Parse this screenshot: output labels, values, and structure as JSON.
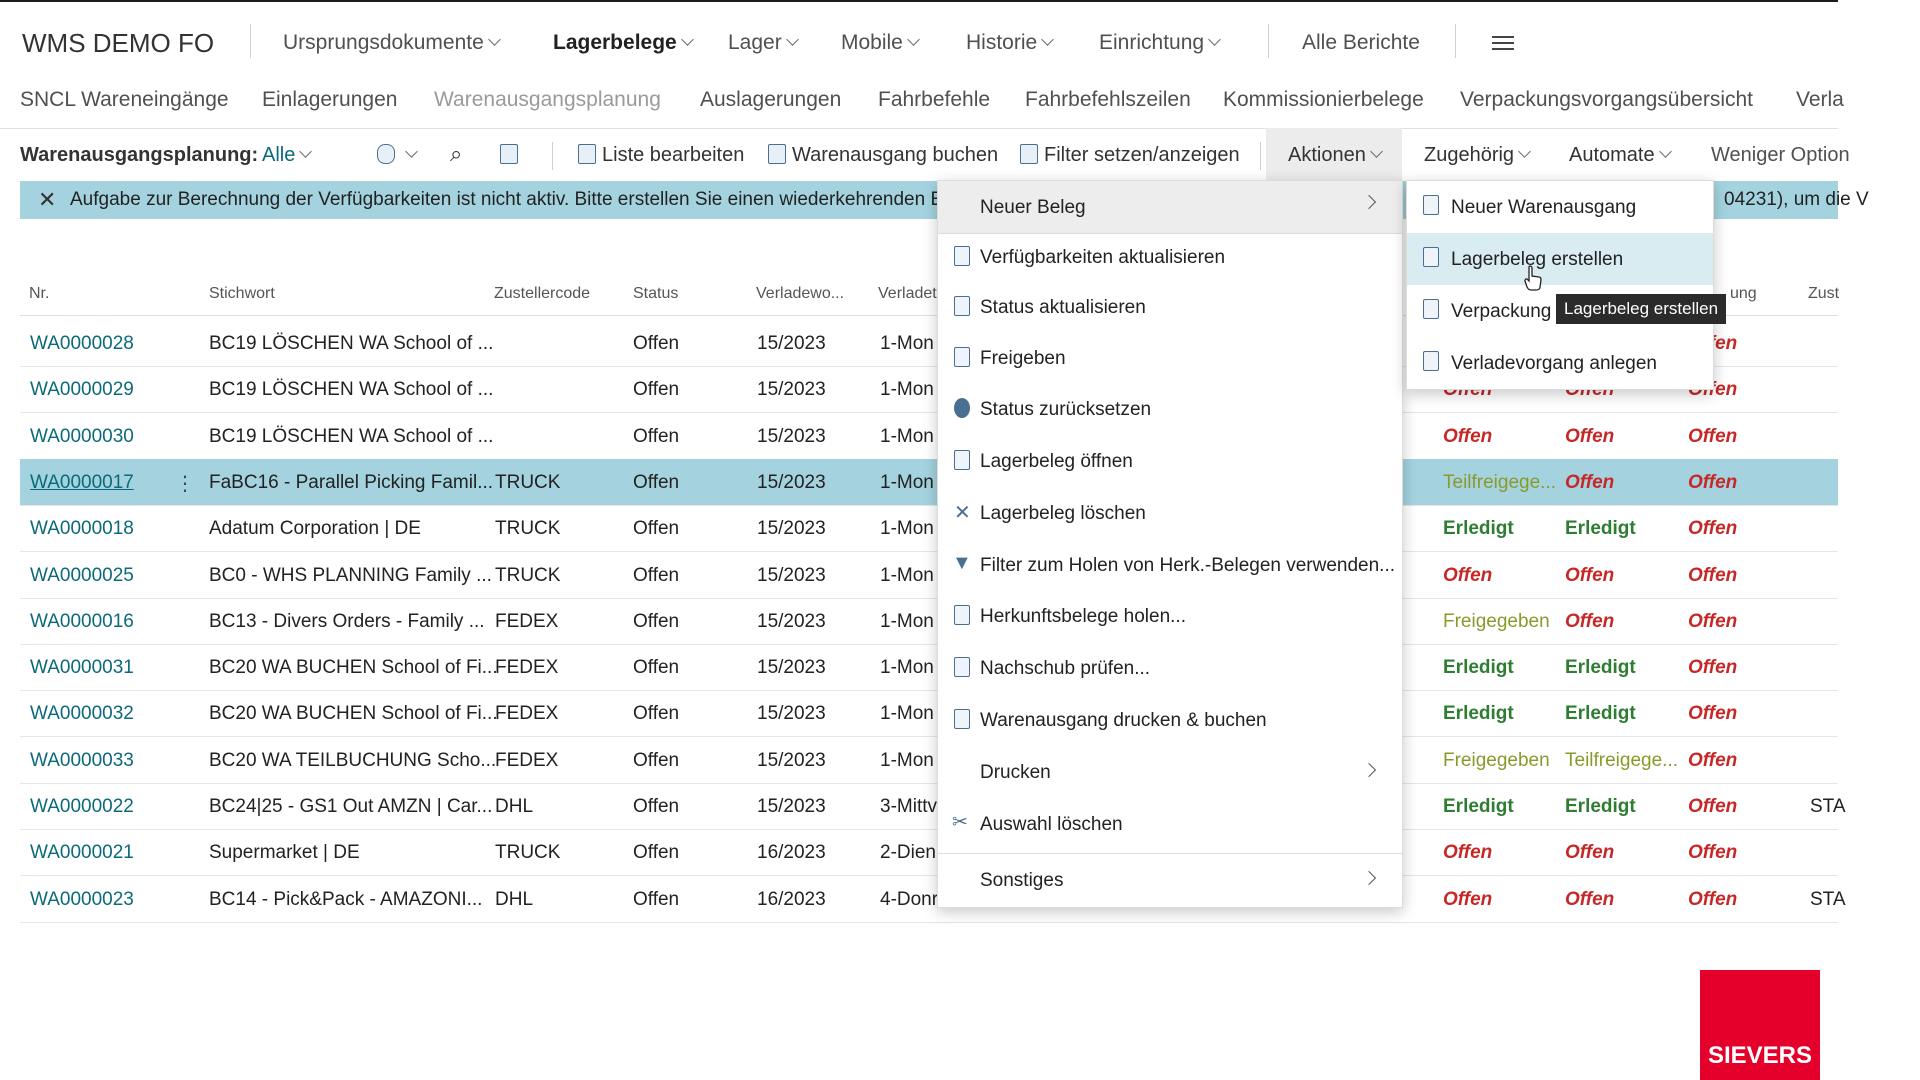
{
  "app": {
    "name": "WMS DEMO FO",
    "nav": [
      "Ursprungsdokumente",
      "Lagerbelege",
      "Lager",
      "Mobile",
      "Historie",
      "Einrichtung"
    ],
    "active_nav": "Lagerbelege",
    "reports": "Alle Berichte"
  },
  "subnav": [
    "SNCL Wareneingänge",
    "Einlagerungen",
    "Warenausgangsplanung",
    "Auslagerungen",
    "Fahrbefehle",
    "Fahrbefehlszeilen",
    "Kommissionierbelege",
    "Verpackungsvorgangsübersicht",
    "Verla"
  ],
  "actionbar": {
    "page_label": "Warenausgangsplanung:",
    "filter_value": "Alle",
    "liste_bearbeiten": "Liste bearbeiten",
    "warenausgang_buchen": "Warenausgang buchen",
    "filter_setzen": "Filter setzen/anzeigen",
    "aktionen": "Aktionen",
    "zugehoerig": "Zugehörig",
    "automate": "Automate",
    "weniger": "Weniger Option"
  },
  "banner": {
    "text": "Aufgabe zur Berechnung der Verfügbarkeiten ist nicht aktiv. Bitte erstellen Sie einen wiederkehrenden E",
    "text_right": "04231), um die V"
  },
  "table": {
    "headers": [
      "Nr.",
      "Stichwort",
      "Zustellercode",
      "Status",
      "Verladewo...",
      "Verladet",
      "ung",
      "Zust"
    ],
    "rows": [
      {
        "nr": "WA0000028",
        "stichwort": "BC19 LÖSCHEN WA School of ...",
        "zust": "",
        "status": "Offen",
        "woche": "15/2023",
        "tag": "1-Mon",
        "c1": "",
        "c2": "",
        "c3": "Offen",
        "c4": "",
        "selected": false
      },
      {
        "nr": "WA0000029",
        "stichwort": "BC19 LÖSCHEN WA School of ...",
        "zust": "",
        "status": "Offen",
        "woche": "15/2023",
        "tag": "1-Mon",
        "c1": "Offen",
        "c2": "Offen",
        "c3": "Offen",
        "c4": "",
        "selected": false
      },
      {
        "nr": "WA0000030",
        "stichwort": "BC19 LÖSCHEN WA School of ...",
        "zust": "",
        "status": "Offen",
        "woche": "15/2023",
        "tag": "1-Mon",
        "c1": "Offen",
        "c2": "Offen",
        "c3": "Offen",
        "c4": "",
        "selected": false
      },
      {
        "nr": "WA0000017",
        "stichwort": "FaBC16 - Parallel Picking Famil...",
        "zust": "TRUCK",
        "status": "Offen",
        "woche": "15/2023",
        "tag": "1-Mon",
        "c1": "Teilfreigege...",
        "c2": "Offen",
        "c3": "Offen",
        "c4": "",
        "selected": true
      },
      {
        "nr": "WA0000018",
        "stichwort": "Adatum Corporation | DE",
        "zust": "TRUCK",
        "status": "Offen",
        "woche": "15/2023",
        "tag": "1-Mon",
        "c1": "Erledigt",
        "c2": "Erledigt",
        "c3": "Offen",
        "c4": "",
        "selected": false
      },
      {
        "nr": "WA0000025",
        "stichwort": "BC0 - WHS PLANNING Family ...",
        "zust": "TRUCK",
        "status": "Offen",
        "woche": "15/2023",
        "tag": "1-Mon",
        "c1": "Offen",
        "c2": "Offen",
        "c3": "Offen",
        "c4": "",
        "selected": false
      },
      {
        "nr": "WA0000016",
        "stichwort": "BC13 - Divers Orders - Family ...",
        "zust": "FEDEX",
        "status": "Offen",
        "woche": "15/2023",
        "tag": "1-Mon",
        "c1": "Freigegeben",
        "c2": "Offen",
        "c3": "Offen",
        "c4": "",
        "selected": false
      },
      {
        "nr": "WA0000031",
        "stichwort": "BC20 WA BUCHEN School of Fi...",
        "zust": "FEDEX",
        "status": "Offen",
        "woche": "15/2023",
        "tag": "1-Mon",
        "c1": "Erledigt",
        "c2": "Erledigt",
        "c3": "Offen",
        "c4": "",
        "selected": false
      },
      {
        "nr": "WA0000032",
        "stichwort": "BC20 WA BUCHEN School of Fi...",
        "zust": "FEDEX",
        "status": "Offen",
        "woche": "15/2023",
        "tag": "1-Mon",
        "c1": "Erledigt",
        "c2": "Erledigt",
        "c3": "Offen",
        "c4": "",
        "selected": false
      },
      {
        "nr": "WA0000033",
        "stichwort": "BC20 WA TEILBUCHUNG Scho...",
        "zust": "FEDEX",
        "status": "Offen",
        "woche": "15/2023",
        "tag": "1-Mon",
        "c1": "Freigegeben",
        "c2": "Teilfreigege...",
        "c3": "Offen",
        "c4": "",
        "selected": false
      },
      {
        "nr": "WA0000022",
        "stichwort": "BC24|25 - GS1 Out AMZN | Car...",
        "zust": "DHL",
        "status": "Offen",
        "woche": "15/2023",
        "tag": "3-Mittv",
        "c1": "Erledigt",
        "c2": "Erledigt",
        "c3": "Offen",
        "c4": "STA",
        "selected": false
      },
      {
        "nr": "WA0000021",
        "stichwort": "Supermarket  | DE",
        "zust": "TRUCK",
        "status": "Offen",
        "woche": "16/2023",
        "tag": "2-Dien",
        "c1": "Offen",
        "c2": "Offen",
        "c3": "Offen",
        "c4": "",
        "selected": false
      },
      {
        "nr": "WA0000023",
        "stichwort": "BC14 - Pick&Pack - AMAZONI...",
        "zust": "DHL",
        "status": "Offen",
        "woche": "16/2023",
        "tag": "4-Donr",
        "c1": "Offen",
        "c2": "Offen",
        "c3": "Offen",
        "c4": "STA",
        "selected": false
      }
    ]
  },
  "menu": {
    "items": [
      "Neuer Beleg",
      "Verfügbarkeiten aktualisieren",
      "Status aktualisieren",
      "Freigeben",
      "Status zurücksetzen",
      "Lagerbeleg öffnen",
      "Lagerbeleg löschen",
      "Filter zum Holen von Herk.-Belegen verwenden...",
      "Herkunftsbelege holen...",
      "Nachschub prüfen...",
      "Warenausgang drucken & buchen",
      "Drucken",
      "Auswahl löschen",
      "Sonstiges"
    ]
  },
  "submenu": {
    "items": [
      "Neuer Warenausgang",
      "Lagerbeleg erstellen",
      "Verpackung",
      "Verladevorgang anlegen"
    ]
  },
  "tooltip": "Lagerbeleg erstellen",
  "logo": "SIEVERS",
  "colors": {
    "accent": "#0b6a7a",
    "selected_row": "#a4d3df",
    "red": "#c62828",
    "green": "#2e7d32",
    "logo": "#e4002b"
  }
}
